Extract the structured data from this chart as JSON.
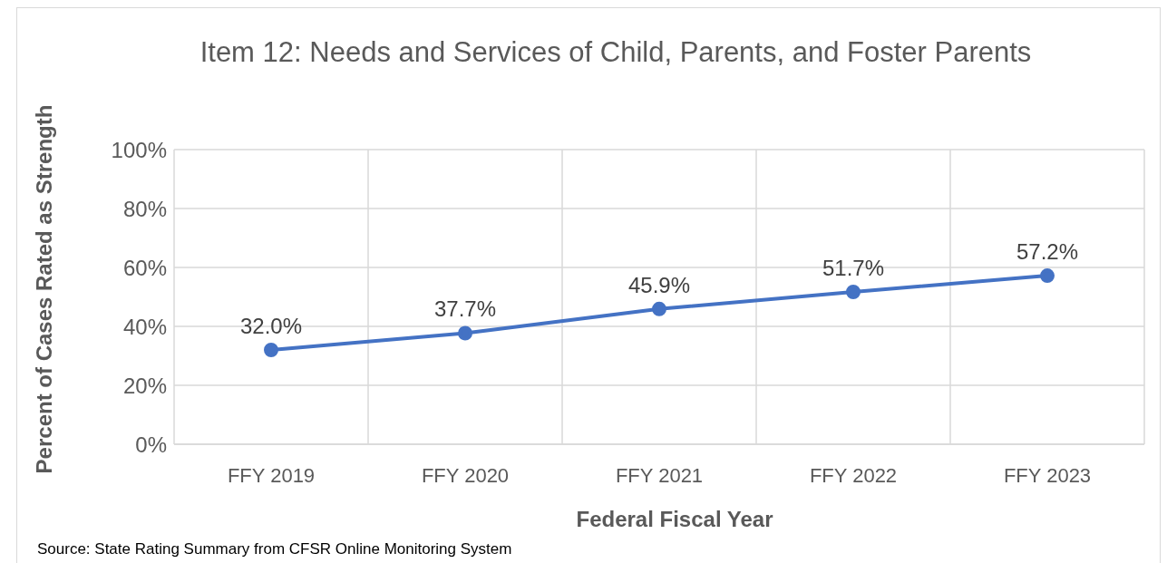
{
  "chart_data": {
    "type": "line",
    "title": "Item 12: Needs and Services of Child, Parents, and Foster Parents",
    "xlabel": "Federal Fiscal Year",
    "ylabel": "Percent of Cases Rated as Strength",
    "categories": [
      "FFY 2019",
      "FFY 2020",
      "FFY 2021",
      "FFY 2022",
      "FFY 2023"
    ],
    "series": [
      {
        "color": "#4472c4",
        "values": [
          32.0,
          37.7,
          45.9,
          51.7,
          57.2
        ]
      }
    ],
    "value_labels": [
      "32.0%",
      "37.7%",
      "45.9%",
      "51.7%",
      "57.2%"
    ],
    "ylim": [
      0,
      100
    ],
    "yticks": [
      {
        "value": 0,
        "label": "0%"
      },
      {
        "value": 20,
        "label": "20%"
      },
      {
        "value": 40,
        "label": "40%"
      },
      {
        "value": 60,
        "label": "60%"
      },
      {
        "value": 80,
        "label": "80%"
      },
      {
        "value": 100,
        "label": "100%"
      }
    ],
    "grid": true,
    "marker": "circle",
    "line_style": "solid",
    "legend": false,
    "annotations": [
      "Source: State Rating Summary from CFSR Online Monitoring System"
    ]
  }
}
